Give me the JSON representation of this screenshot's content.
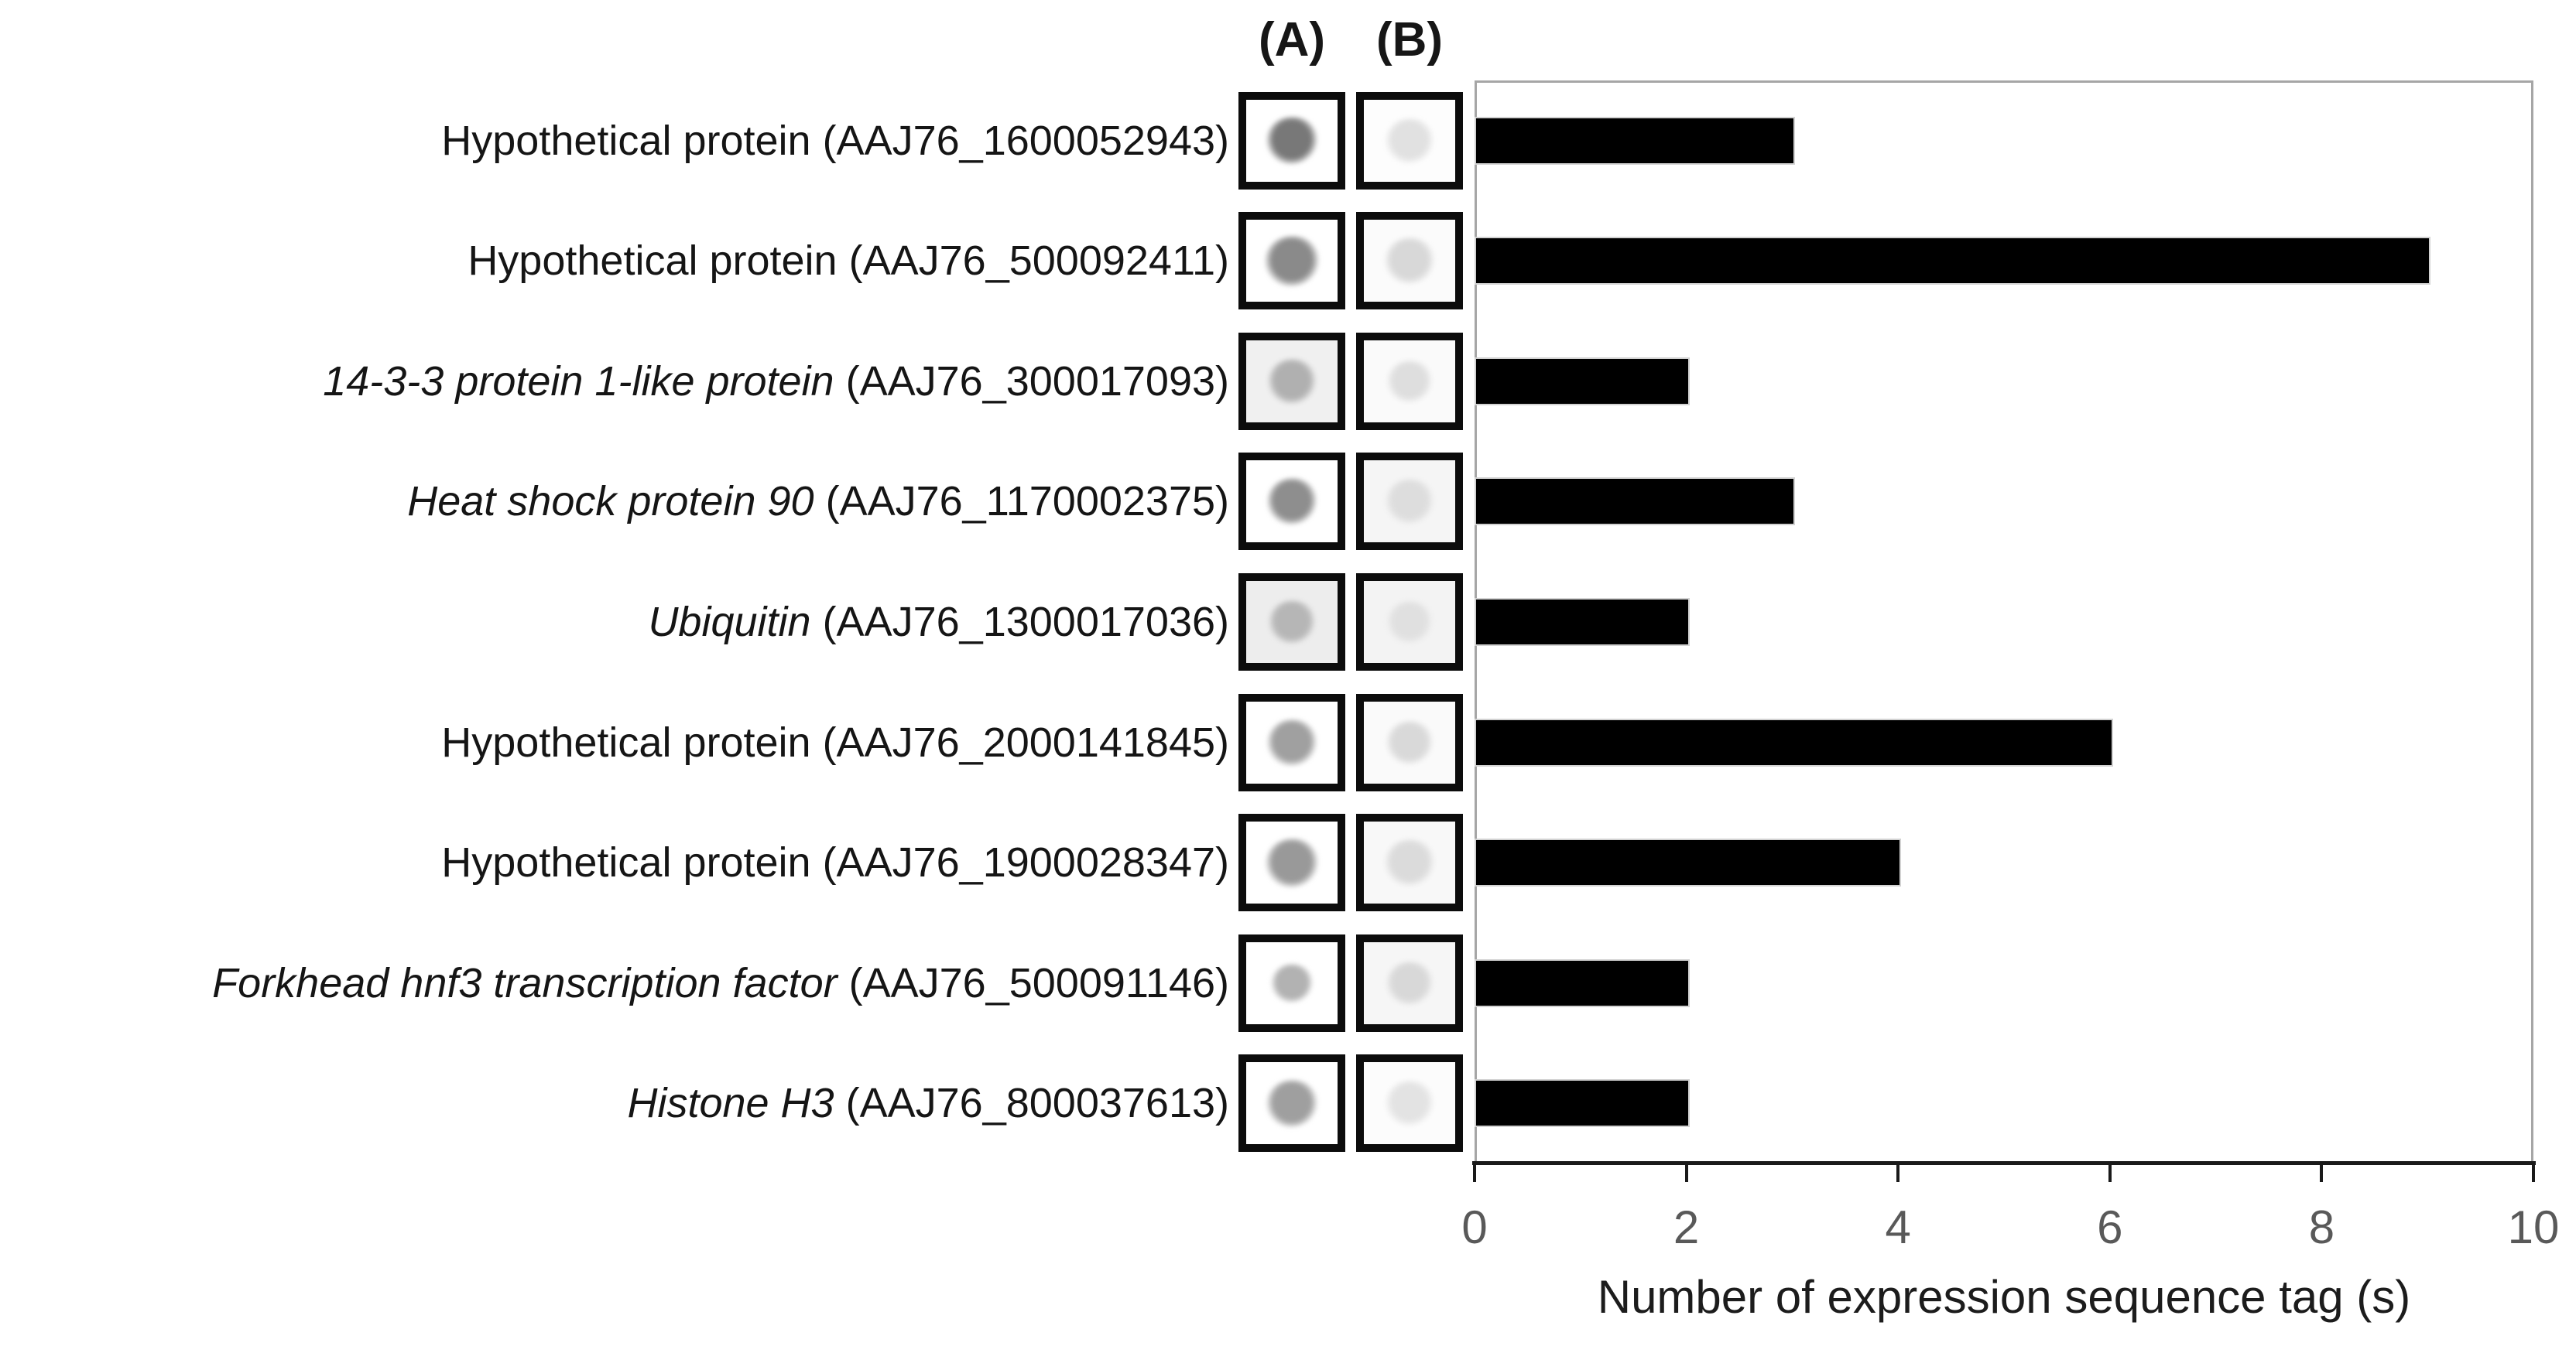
{
  "figure": {
    "col_a_label": "(A)",
    "col_b_label": "(B)",
    "axis": {
      "title": "Number of expression sequence tag (s)",
      "min": 0,
      "max": 10,
      "ticks": [
        0,
        2,
        4,
        6,
        8,
        10
      ]
    },
    "rows": [
      {
        "name": "Hypothetical protein",
        "accession": "(AAJ76_1600052943)",
        "italic": false,
        "value": 3,
        "blot_a": {
          "bg": "#ffffff",
          "dot": "#787878",
          "size": 66
        },
        "blot_b": {
          "bg": "#fdfdfd",
          "dot": "#e1e1e1",
          "size": 62
        }
      },
      {
        "name": "Hypothetical protein",
        "accession": "(AAJ76_500092411)",
        "italic": false,
        "value": 9,
        "blot_a": {
          "bg": "#ffffff",
          "dot": "#8a8a8a",
          "size": 70
        },
        "blot_b": {
          "bg": "#fbfbfb",
          "dot": "#d8d8d8",
          "size": 64
        }
      },
      {
        "name": "14-3-3 protein 1-like protein",
        "accession": "(AAJ76_300017093)",
        "italic": true,
        "value": 2,
        "blot_a": {
          "bg": "#f0f0f0",
          "dot": "#b0b0b0",
          "size": 62
        },
        "blot_b": {
          "bg": "#fafafa",
          "dot": "#dedede",
          "size": 58
        }
      },
      {
        "name": "Heat shock protein 90",
        "accession": "(AAJ76_1170002375)",
        "italic": true,
        "value": 3,
        "blot_a": {
          "bg": "#ffffff",
          "dot": "#8e8e8e",
          "size": 64
        },
        "blot_b": {
          "bg": "#f5f5f5",
          "dot": "#dddddd",
          "size": 62
        }
      },
      {
        "name": "Ubiquitin",
        "accession": "(AAJ76_1300017036)",
        "italic": true,
        "value": 2,
        "blot_a": {
          "bg": "#ededed",
          "dot": "#b6b6b6",
          "size": 60
        },
        "blot_b": {
          "bg": "#f3f3f3",
          "dot": "#e0e0e0",
          "size": 58
        }
      },
      {
        "name": "Hypothetical protein",
        "accession": "(AAJ76_2000141845)",
        "italic": false,
        "value": 6,
        "blot_a": {
          "bg": "#ffffff",
          "dot": "#a0a0a0",
          "size": 64
        },
        "blot_b": {
          "bg": "#fafafa",
          "dot": "#d9d9d9",
          "size": 60
        }
      },
      {
        "name": "Hypothetical protein",
        "accession": "(AAJ76_1900028347)",
        "italic": false,
        "value": 4,
        "blot_a": {
          "bg": "#ffffff",
          "dot": "#999999",
          "size": 68
        },
        "blot_b": {
          "bg": "#f8f8f8",
          "dot": "#dbdbdb",
          "size": 64
        }
      },
      {
        "name": "Forkhead hnf3 transcription factor",
        "accession": "(AAJ76_500091146)",
        "italic": true,
        "value": 2,
        "blot_a": {
          "bg": "#ffffff",
          "dot": "#b2b2b2",
          "size": 54
        },
        "blot_b": {
          "bg": "#f6f6f6",
          "dot": "#d8d8d8",
          "size": 60
        }
      },
      {
        "name": "Histone H3",
        "accession": "(AAJ76_800037613)",
        "italic": true,
        "value": 2,
        "blot_a": {
          "bg": "#ffffff",
          "dot": "#9f9f9f",
          "size": 66
        },
        "blot_b": {
          "bg": "#fcfcfc",
          "dot": "#e3e3e3",
          "size": 62
        }
      }
    ]
  },
  "chart_data": {
    "type": "bar",
    "orientation": "horizontal",
    "categories": [
      "Hypothetical protein (AAJ76_1600052943)",
      "Hypothetical protein (AAJ76_500092411)",
      "14-3-3 protein 1-like protein (AAJ76_300017093)",
      "Heat shock protein 90 (AAJ76_1170002375)",
      "Ubiquitin (AAJ76_1300017036)",
      "Hypothetical protein (AAJ76_2000141845)",
      "Hypothetical protein (AAJ76_1900028347)",
      "Forkhead hnf3 transcription factor (AAJ76_500091146)",
      "Histone H3 (AAJ76_800037613)"
    ],
    "values": [
      3,
      9,
      2,
      3,
      2,
      6,
      4,
      2,
      2
    ],
    "title": "",
    "xlabel": "Number of expression sequence tag (s)",
    "ylabel": "",
    "xlim": [
      0,
      10
    ],
    "xticks": [
      0,
      2,
      4,
      6,
      8,
      10
    ],
    "grid": false,
    "legend": false,
    "bar_color": "#000000",
    "tick_label_color": "#595959"
  }
}
